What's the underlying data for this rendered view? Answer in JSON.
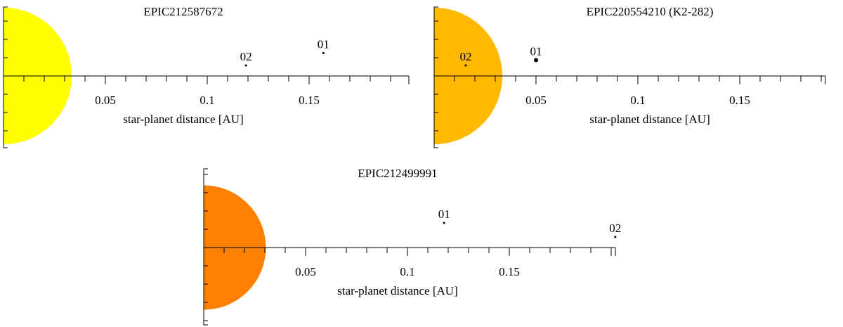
{
  "chart_data": [
    {
      "type": "scatter",
      "title": "EPIC212587672",
      "xlabel": "star-planet distance [AU]",
      "xlim": [
        0,
        0.2
      ],
      "xticks": [
        0.05,
        0.1,
        0.15
      ],
      "tick_labels": [
        "0.05",
        "0.1",
        "0.15"
      ],
      "star_color": "#ffff00",
      "star_radius_au": 0.0335,
      "points": [
        {
          "label": "02",
          "x": 0.119,
          "y": 0.6,
          "marker": "small"
        },
        {
          "label": "01",
          "x": 0.157,
          "y": 1.3,
          "marker": "small"
        }
      ]
    },
    {
      "type": "scatter",
      "title": "EPIC220554210 (K2-282)",
      "xlabel": "star-planet distance [AU]",
      "xlim": [
        0,
        0.2
      ],
      "xticks": [
        0.05,
        0.1,
        0.15
      ],
      "tick_labels": [
        "0.05",
        "0.1",
        "0.15"
      ],
      "star_color": "#ffb900",
      "star_radius_au": 0.0335,
      "points": [
        {
          "label": "02",
          "x": 0.0155,
          "y": 0.6,
          "marker": "small"
        },
        {
          "label": "01",
          "x": 0.05,
          "y": 0.9,
          "marker": "large"
        }
      ]
    },
    {
      "type": "scatter",
      "title": "EPIC212499991",
      "xlabel": "star-planet distance [AU]",
      "xlim": [
        0,
        0.2
      ],
      "xticks": [
        0.05,
        0.1,
        0.15
      ],
      "tick_labels": [
        "0.05",
        "0.1",
        "0.15"
      ],
      "star_color": "#ff8000",
      "star_radius_au": 0.0305,
      "points": [
        {
          "label": "01",
          "x": 0.118,
          "y": 1.4,
          "marker": "small"
        },
        {
          "label": "02",
          "x": 0.202,
          "y": 0.6,
          "marker": "small"
        }
      ]
    }
  ]
}
